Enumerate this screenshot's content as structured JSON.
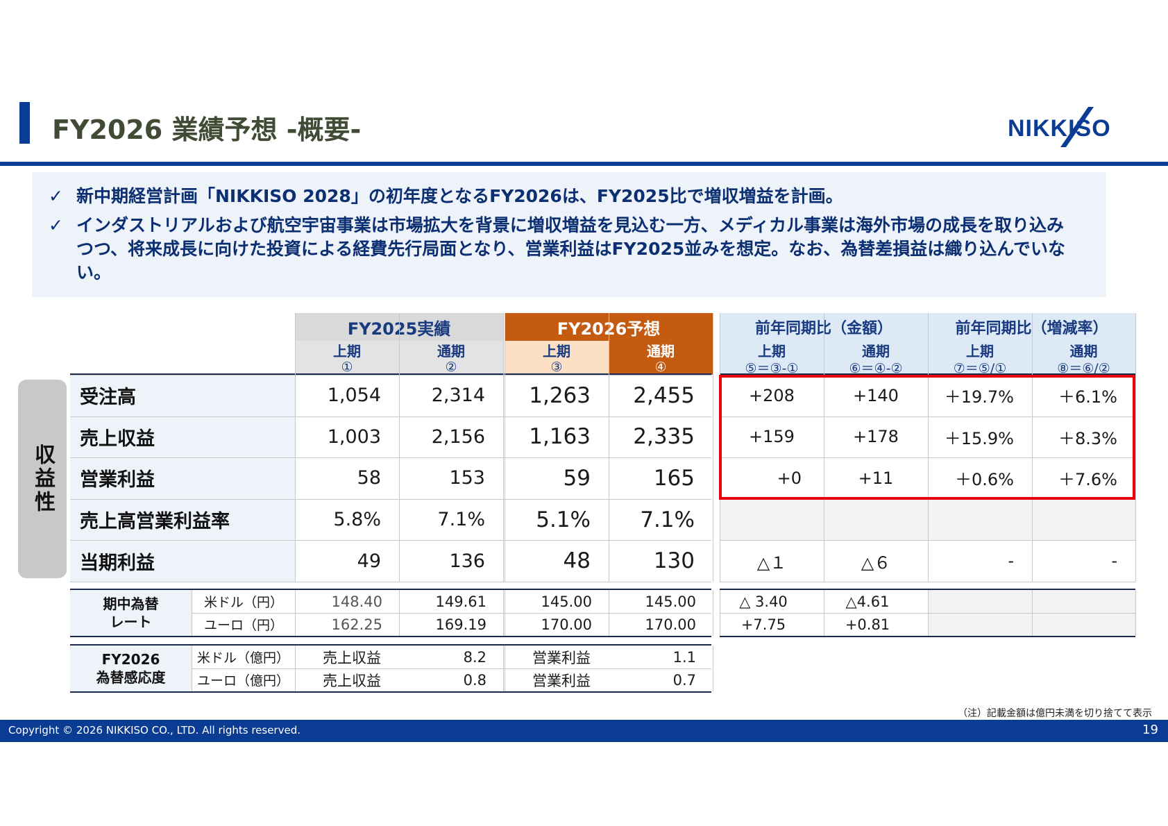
{
  "header": {
    "title": "FY2026 業績予想 -概要-",
    "logo_text": "NIKKISO"
  },
  "summary": {
    "bullets": [
      "新中期経営計画「NIKKISO 2028」の初年度となるFY2026は、FY2025比で増収増益を計画。",
      "インダストリアルおよび航空宇宙事業は市場拡大を背景に増収増益を見込む一方、メディカル事業は海外市場の成長を取り込みつつ、将来成長に向けた投資による経費先行局面となり、営業利益はFY2025並みを想定。なお、為替差損益は織り込んでいない。"
    ],
    "check": "✓"
  },
  "table": {
    "side_label": "収益性",
    "groups": {
      "fy2025": "FY2025実績",
      "fy2026": "FY2026予想",
      "yoy_amount": "前年同期比（金額）",
      "yoy_rate": "前年同期比（増減率）"
    },
    "sub": {
      "h1": "上期",
      "full": "通期"
    },
    "codes": [
      "①",
      "②",
      "③",
      "④",
      "⑤＝③-①",
      "⑥＝④-②",
      "⑦＝⑤/①",
      "⑧＝⑥/②"
    ],
    "rows": [
      {
        "label": "受注高",
        "v": [
          "1,054",
          "2,314",
          "1,263",
          "2,455",
          "+208",
          "+140",
          "＋19.7%",
          "＋6.1%"
        ]
      },
      {
        "label": "売上収益",
        "v": [
          "1,003",
          "2,156",
          "1,163",
          "2,335",
          "+159",
          "+178",
          "＋15.9%",
          "＋8.3%"
        ]
      },
      {
        "label": "営業利益",
        "v": [
          "58",
          "153",
          "59",
          "165",
          "+0",
          "+11",
          "＋0.6%",
          "＋7.6%"
        ]
      },
      {
        "label": "売上高営業利益率",
        "v": [
          "5.8%",
          "7.1%",
          "5.1%",
          "7.1%",
          "",
          "",
          "",
          ""
        ]
      },
      {
        "label": "当期利益",
        "v": [
          "49",
          "136",
          "48",
          "130",
          "△１",
          "△６",
          "-",
          "-"
        ]
      }
    ],
    "fx": {
      "label": "期中為替\nレート",
      "label_l1": "期中為替",
      "label_l2": "レート",
      "rows": [
        {
          "currency": "米ドル（円）",
          "v": [
            "148.40",
            "149.61",
            "145.00",
            "145.00",
            "△ 3.40",
            "△4.61"
          ]
        },
        {
          "currency": "ユーロ（円）",
          "v": [
            "162.25",
            "169.19",
            "170.00",
            "170.00",
            "+7.75",
            "+0.81"
          ]
        }
      ]
    },
    "sensitivity": {
      "label_l1": "FY2026",
      "label_l2": "為替感応度",
      "rows": [
        {
          "currency": "米ドル（億円）",
          "item1": "売上収益",
          "val1": "8.2",
          "item2": "営業利益",
          "val2": "1.1"
        },
        {
          "currency": "ユーロ（億円）",
          "item1": "売上収益",
          "val1": "0.8",
          "item2": "営業利益",
          "val2": "0.7"
        }
      ]
    }
  },
  "note": "（注）記載金額は億円未満を切り捨てて表示",
  "footer": {
    "copyright": "Copyright © 2026 NIKKISO CO., LTD. All rights reserved.",
    "page": "19"
  },
  "colors": {
    "brand_blue": "#0b3c93",
    "forecast_orange": "#c55a11",
    "highlight_red": "#e8000b"
  }
}
